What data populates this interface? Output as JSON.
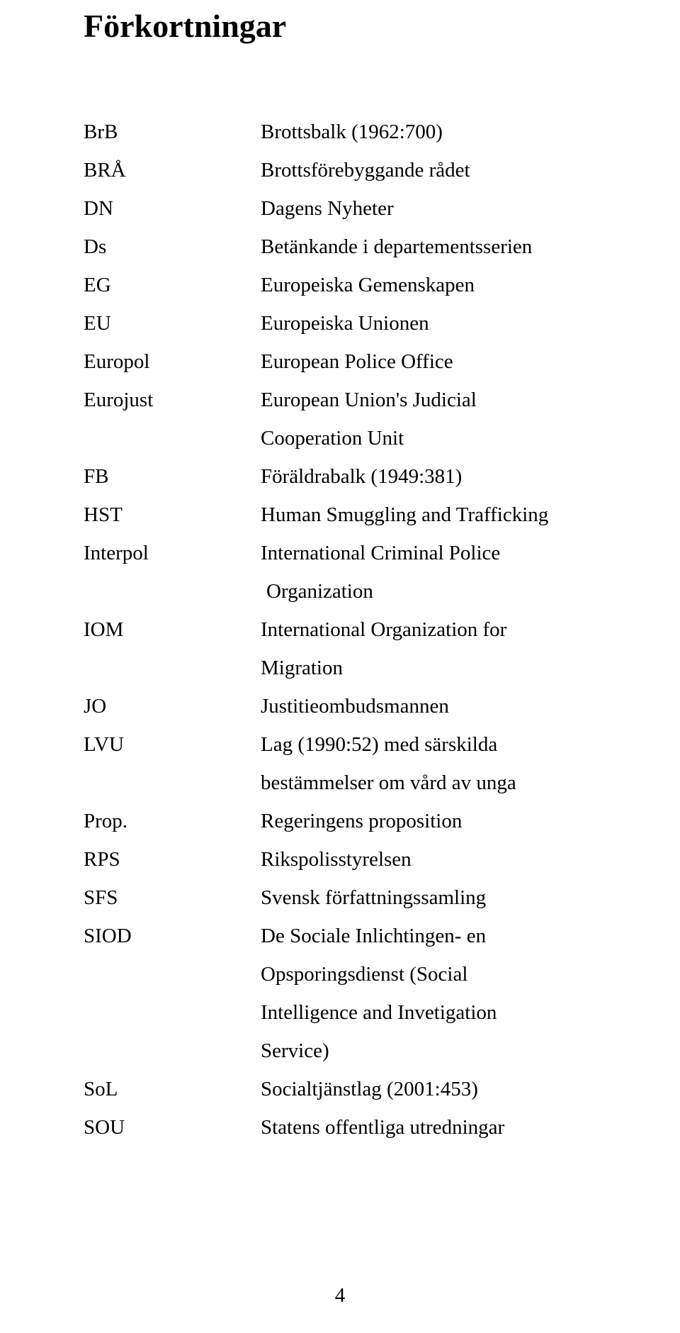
{
  "title": "Förkortningar",
  "rows": [
    {
      "abbr": "BrB",
      "def": "Brottsbalk (1962:700)"
    },
    {
      "abbr": "BRÅ",
      "def": "Brottsförebyggande rådet"
    },
    {
      "abbr": "DN",
      "def": "Dagens Nyheter"
    },
    {
      "abbr": "Ds",
      "def": "Betänkande i departementsserien"
    },
    {
      "abbr": "EG",
      "def": "Europeiska Gemenskapen"
    },
    {
      "abbr": "EU",
      "def": "Europeiska Unionen"
    },
    {
      "abbr": "Europol",
      "def": "European Police Office"
    },
    {
      "abbr": "Eurojust",
      "def": "European Union's Judicial"
    },
    {
      "cont": "Cooperation Unit"
    },
    {
      "abbr": "FB",
      "def": "Föräldrabalk (1949:381)"
    },
    {
      "abbr": "HST",
      "def": "Human Smuggling and Trafficking"
    },
    {
      "abbr": "Interpol",
      "def": "International Criminal Police"
    },
    {
      "indent": " Organization"
    },
    {
      "abbr": "IOM",
      "def": "International Organization for"
    },
    {
      "cont": "Migration"
    },
    {
      "abbr": "JO",
      "def": "Justitieombudsmannen"
    },
    {
      "abbr": "LVU",
      "def": "Lag (1990:52) med särskilda"
    },
    {
      "cont": "bestämmelser om vård av unga"
    },
    {
      "abbr": "Prop.",
      "def": "Regeringens proposition"
    },
    {
      "abbr": "RPS",
      "def": "Rikspolisstyrelsen"
    },
    {
      "abbr": "SFS",
      "def": "Svensk författningssamling"
    },
    {
      "abbr": "SIOD",
      "def": "De Sociale Inlichtingen- en"
    },
    {
      "cont": "Opsporingsdienst (Social"
    },
    {
      "cont": "Intelligence and Invetigation"
    },
    {
      "cont": "Service)"
    },
    {
      "abbr": "SoL",
      "def": "Socialtjänstlag (2001:453)"
    },
    {
      "abbr": "SOU",
      "def": "Statens offentliga utredningar"
    }
  ],
  "page_number": "4"
}
